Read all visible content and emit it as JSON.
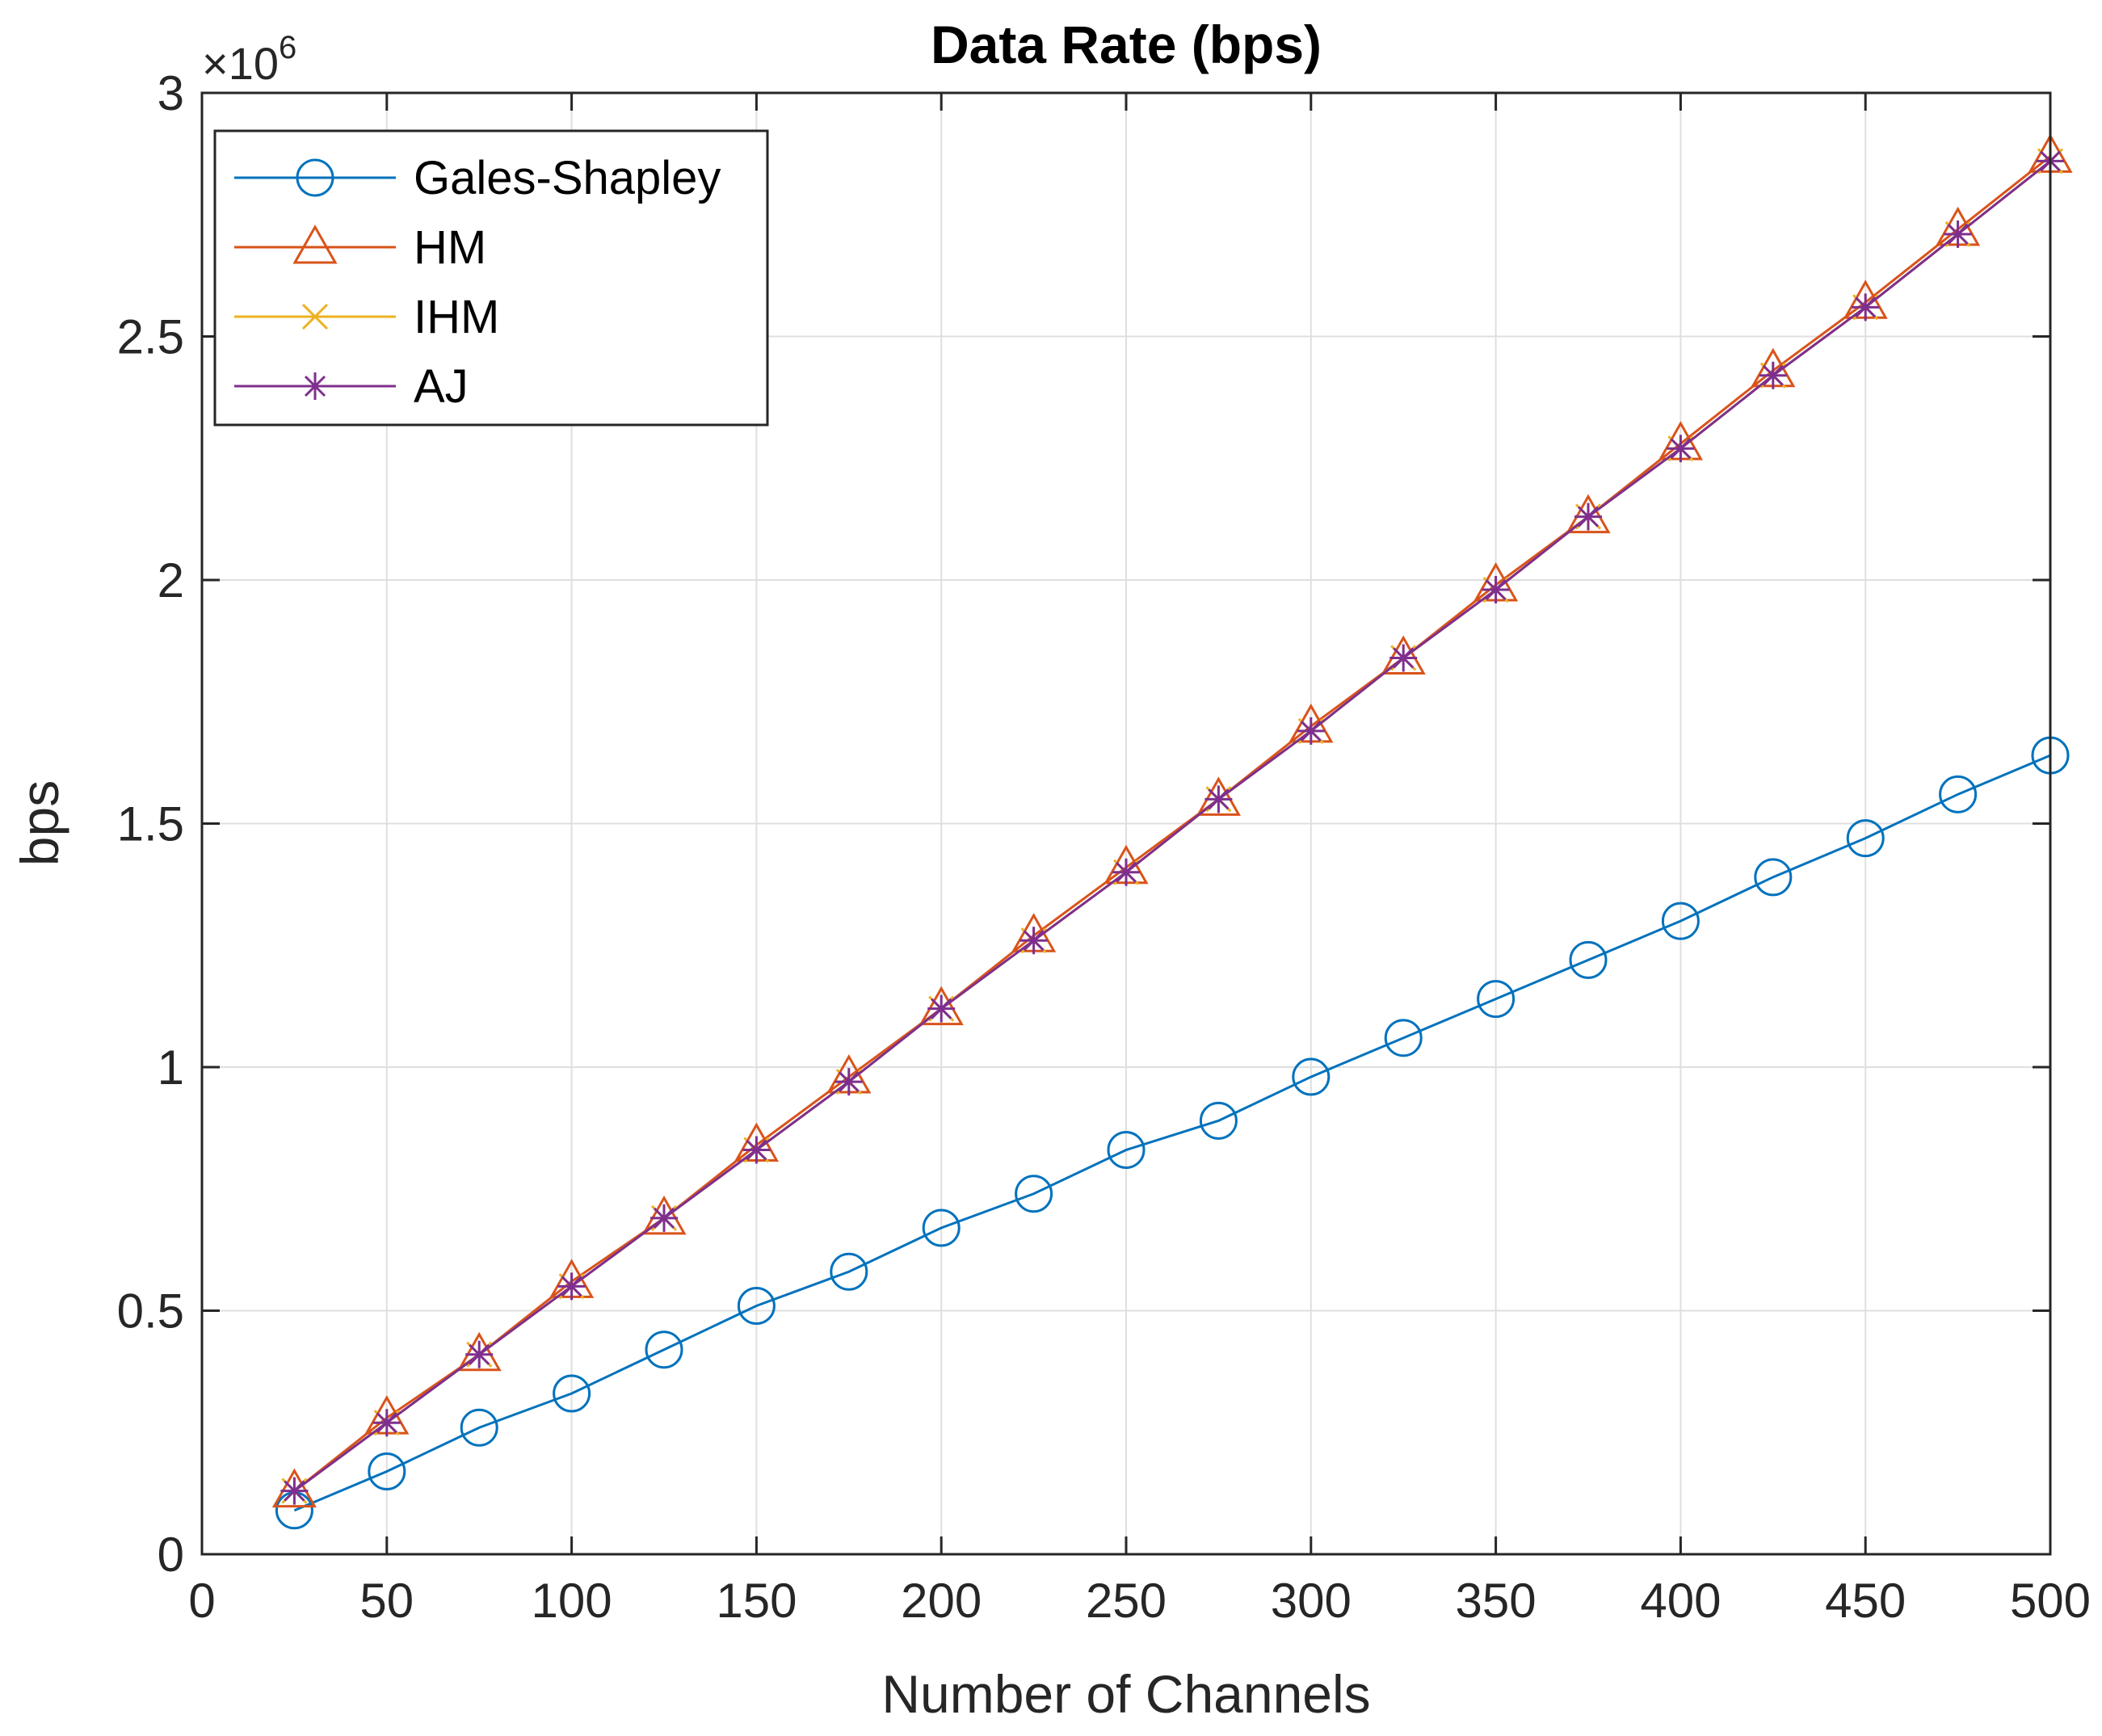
{
  "chart_data": {
    "type": "line",
    "title": "Data Rate (bps)",
    "xlabel": "Number of Channels",
    "ylabel": "bps",
    "y_exponent_base": "×10",
    "y_exponent_power": "6",
    "xlim": [
      0,
      500
    ],
    "ylim": [
      0,
      3
    ],
    "xticks": [
      0,
      50,
      100,
      150,
      200,
      250,
      300,
      350,
      400,
      450,
      500
    ],
    "xtick_labels": [
      "0",
      "50",
      "100",
      "150",
      "200",
      "250",
      "300",
      "350",
      "400",
      "450",
      "500"
    ],
    "yticks": [
      0,
      0.5,
      1,
      1.5,
      2,
      2.5,
      3
    ],
    "ytick_labels": [
      "0",
      "0.5",
      "1",
      "1.5",
      "2",
      "2.5",
      "3"
    ],
    "grid": true,
    "legend_position": "top-left",
    "x": [
      25,
      50,
      75,
      100,
      125,
      150,
      175,
      200,
      225,
      250,
      275,
      300,
      325,
      350,
      375,
      400,
      425,
      450,
      475,
      500
    ],
    "series": [
      {
        "name": "Gales-Shapley",
        "color": "#0072BD",
        "marker": "circle",
        "values": [
          0.09,
          0.17,
          0.26,
          0.33,
          0.42,
          0.51,
          0.58,
          0.67,
          0.74,
          0.83,
          0.89,
          0.98,
          1.06,
          1.14,
          1.22,
          1.3,
          1.39,
          1.47,
          1.56,
          1.64
        ]
      },
      {
        "name": "HM",
        "color": "#D95319",
        "marker": "triangle",
        "values": [
          0.13,
          0.28,
          0.41,
          0.56,
          0.69,
          0.84,
          0.98,
          1.12,
          1.27,
          1.41,
          1.55,
          1.7,
          1.84,
          1.99,
          2.13,
          2.28,
          2.43,
          2.57,
          2.72,
          2.87
        ]
      },
      {
        "name": "IHM",
        "color": "#EDB120",
        "marker": "x",
        "values": [
          0.13,
          0.27,
          0.41,
          0.55,
          0.69,
          0.83,
          0.97,
          1.12,
          1.26,
          1.4,
          1.55,
          1.69,
          1.84,
          1.98,
          2.13,
          2.27,
          2.42,
          2.56,
          2.71,
          2.86
        ]
      },
      {
        "name": "AJ",
        "color": "#7E2F8E",
        "marker": "asterisk",
        "values": [
          0.13,
          0.27,
          0.41,
          0.55,
          0.69,
          0.83,
          0.97,
          1.12,
          1.26,
          1.4,
          1.55,
          1.69,
          1.84,
          1.98,
          2.13,
          2.27,
          2.42,
          2.56,
          2.71,
          2.86
        ]
      }
    ]
  }
}
